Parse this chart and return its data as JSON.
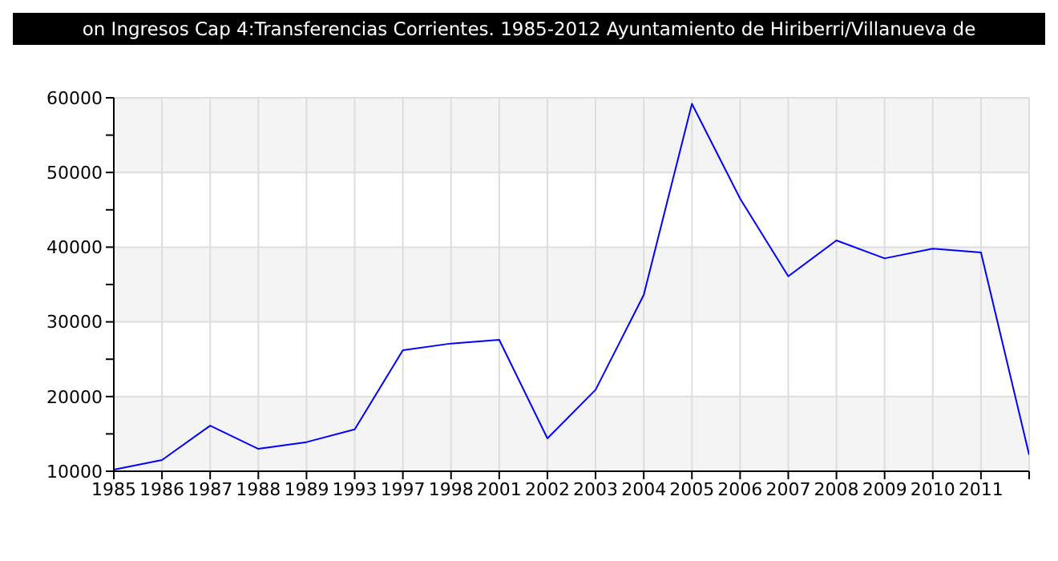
{
  "chart_data": {
    "type": "line",
    "title": "on Ingresos Cap 4:Transferencias Corrientes. 1985-2012 Ayuntamiento de Hiriberri/Villanueva de",
    "categories": [
      "1985",
      "1986",
      "1987",
      "1988",
      "1989",
      "1993",
      "1997",
      "1998",
      "2001",
      "2002",
      "2003",
      "2004",
      "2005",
      "2006",
      "2007",
      "2008",
      "2009",
      "2010",
      "2011",
      null
    ],
    "series": [
      {
        "color": "#0000ff",
        "values": [
          10200,
          11500,
          16100,
          13000,
          13900,
          15600,
          26200,
          27100,
          27600,
          14400,
          20900,
          33600,
          59200,
          46500,
          36100,
          40900,
          38500,
          39800,
          39300,
          12200
        ]
      }
    ],
    "ylim": [
      10000,
      60000
    ],
    "yticks": [
      10000,
      {
        "value": 15000,
        "label": null
      },
      20000,
      {
        "value": 25000,
        "label": null
      },
      30000,
      {
        "value": 35000,
        "label": null
      },
      40000,
      {
        "value": 45000,
        "label": null
      },
      50000,
      {
        "value": 55000,
        "label": null
      },
      60000
    ],
    "grid": true,
    "legend": false,
    "marker": "none",
    "line_style": "solid"
  }
}
